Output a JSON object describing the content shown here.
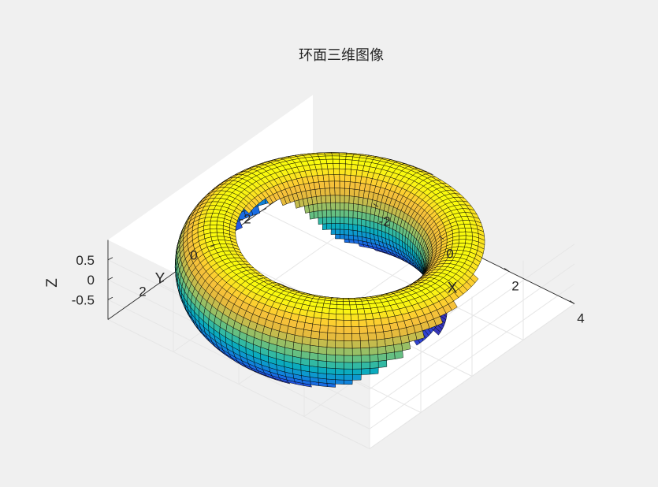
{
  "chart_data": {
    "type": "surface",
    "title": "环面三维图像",
    "xlabel": "X",
    "ylabel": "Y",
    "zlabel": "Z",
    "surface": {
      "shape": "torus",
      "R": 3,
      "r": 1,
      "u_steps": 120,
      "v_steps": 40,
      "colormap": "parula",
      "edge_color": "#000000"
    },
    "xlim": [
      -4,
      4
    ],
    "ylim": [
      -4,
      4
    ],
    "zlim": [
      -1,
      1
    ],
    "xticks": [
      -2,
      0,
      2,
      4
    ],
    "xtick_labels": [
      "-2",
      "0",
      "2",
      "4"
    ],
    "yticks": [
      -2,
      0,
      2
    ],
    "ytick_labels": [
      "-2",
      "0",
      "2"
    ],
    "zticks": [
      -0.5,
      0,
      0.5
    ],
    "ztick_labels": [
      "-0.5",
      "0",
      "0.5"
    ],
    "grid": true,
    "box": false,
    "view": {
      "azimuth": -37.5,
      "elevation": 30
    }
  }
}
